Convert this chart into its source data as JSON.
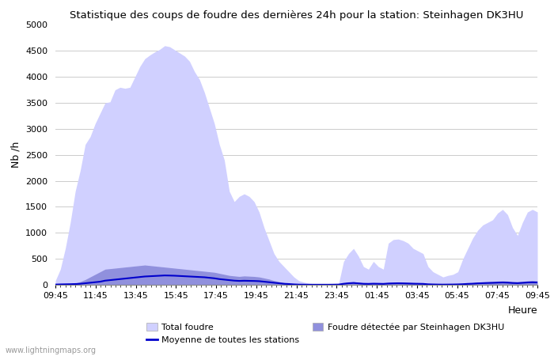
{
  "title": "Statistique des coups de foudre des dernières 24h pour la station: Steinhagen DK3HU",
  "ylabel": "Nb /h",
  "xlabel": "Heure",
  "watermark": "www.lightningmaps.org",
  "xlim": [
    0,
    96
  ],
  "ylim": [
    0,
    5000
  ],
  "yticks": [
    0,
    500,
    1000,
    1500,
    2000,
    2500,
    3000,
    3500,
    4000,
    4500,
    5000
  ],
  "xtick_labels": [
    "09:45",
    "11:45",
    "13:45",
    "15:45",
    "17:45",
    "19:45",
    "21:45",
    "23:45",
    "01:45",
    "03:45",
    "05:45",
    "07:45",
    "09:45"
  ],
  "xtick_positions": [
    0,
    8,
    16,
    24,
    32,
    40,
    48,
    56,
    64,
    72,
    80,
    88,
    96
  ],
  "color_total": "#d0d0ff",
  "color_detected": "#9090dd",
  "color_mean": "#0000cc",
  "total_foudre": [
    80,
    300,
    700,
    1200,
    1800,
    2200,
    2700,
    2850,
    3100,
    3300,
    3500,
    3520,
    3750,
    3800,
    3780,
    3800,
    4000,
    4200,
    4350,
    4420,
    4480,
    4530,
    4600,
    4580,
    4520,
    4460,
    4400,
    4300,
    4100,
    3950,
    3700,
    3400,
    3100,
    2700,
    2400,
    1800,
    1600,
    1700,
    1750,
    1700,
    1600,
    1400,
    1100,
    850,
    600,
    450,
    350,
    250,
    150,
    80,
    50,
    30,
    20,
    15,
    10,
    10,
    15,
    20,
    450,
    600,
    700,
    550,
    350,
    300,
    450,
    350,
    300,
    800,
    870,
    880,
    850,
    800,
    700,
    650,
    600,
    350,
    250,
    200,
    150,
    180,
    200,
    250,
    500,
    700,
    900,
    1050,
    1150,
    1200,
    1250,
    1380,
    1450,
    1350,
    1100,
    950,
    1200,
    1400,
    1450,
    1400
  ],
  "detected_foudre": [
    5,
    10,
    15,
    20,
    30,
    60,
    100,
    150,
    200,
    250,
    300,
    310,
    320,
    330,
    340,
    350,
    360,
    370,
    380,
    370,
    360,
    350,
    340,
    330,
    320,
    310,
    300,
    290,
    280,
    270,
    260,
    250,
    240,
    220,
    200,
    180,
    170,
    160,
    170,
    165,
    160,
    150,
    130,
    110,
    80,
    60,
    40,
    30,
    15,
    8,
    5,
    3,
    2,
    2,
    2,
    2,
    3,
    5,
    30,
    50,
    60,
    45,
    30,
    25,
    35,
    30,
    25,
    40,
    45,
    50,
    48,
    45,
    40,
    35,
    30,
    15,
    10,
    8,
    6,
    8,
    10,
    12,
    20,
    30,
    40,
    50,
    55,
    60,
    65,
    70,
    75,
    70,
    60,
    55,
    65,
    75,
    80,
    75
  ],
  "mean_line": [
    5,
    8,
    10,
    12,
    15,
    20,
    30,
    40,
    50,
    60,
    80,
    90,
    100,
    110,
    120,
    130,
    140,
    150,
    160,
    165,
    170,
    175,
    180,
    178,
    175,
    170,
    165,
    160,
    155,
    150,
    145,
    135,
    125,
    110,
    100,
    90,
    80,
    75,
    78,
    76,
    74,
    70,
    60,
    50,
    40,
    30,
    20,
    15,
    8,
    4,
    3,
    2,
    2,
    2,
    2,
    2,
    3,
    5,
    20,
    30,
    35,
    28,
    20,
    18,
    22,
    20,
    18,
    25,
    28,
    30,
    28,
    25,
    22,
    20,
    18,
    10,
    7,
    5,
    4,
    5,
    6,
    8,
    12,
    18,
    22,
    28,
    32,
    35,
    38,
    42,
    45,
    42,
    35,
    32,
    38,
    45,
    48,
    45
  ]
}
